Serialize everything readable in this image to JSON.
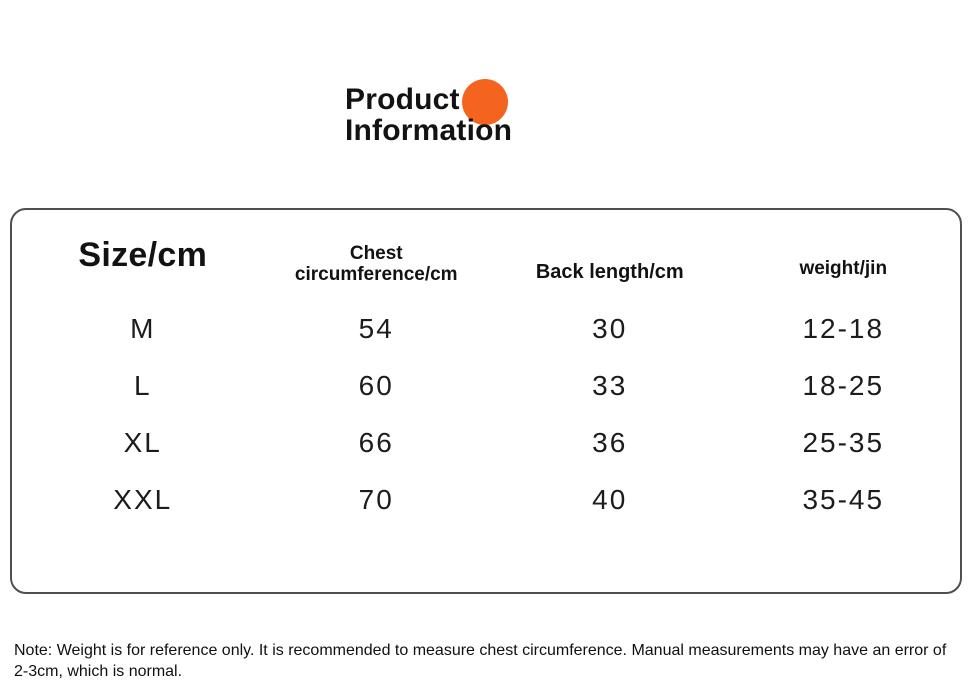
{
  "title": {
    "line1": "Product",
    "line2": "Information",
    "accent_color": "#f4641e"
  },
  "table": {
    "border_color": "#4f4f4f",
    "headers": {
      "size": "Size/cm",
      "chest_line1": "Chest",
      "chest_line2": "circumference/cm",
      "back": "Back length/cm",
      "weight": "weight/jin"
    },
    "rows": [
      {
        "size": "M",
        "chest": "54",
        "back": "30",
        "weight": "12-18"
      },
      {
        "size": "L",
        "chest": "60",
        "back": "33",
        "weight": "18-25"
      },
      {
        "size": "XL",
        "chest": "66",
        "back": "36",
        "weight": "25-35"
      },
      {
        "size": "XXL",
        "chest": "70",
        "back": "40",
        "weight": "35-45"
      }
    ]
  },
  "note": {
    "text": "Note: Weight is for reference only. It is recommended to measure chest circumference. Manual measurements may have an error of 2-3cm, which is normal."
  }
}
